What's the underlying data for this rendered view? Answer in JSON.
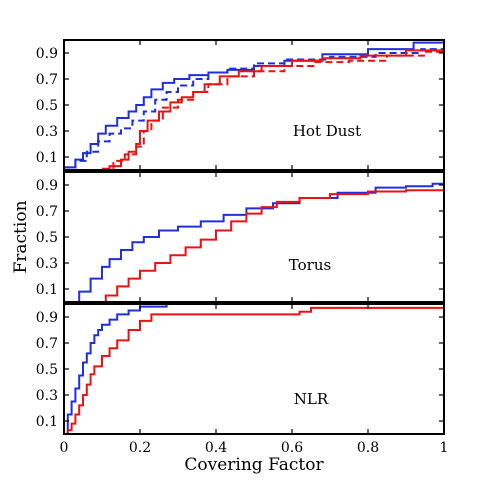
{
  "chart_data": {
    "type": "line",
    "xlabel": "Covering Factor",
    "ylabel": "Fraction",
    "xlim": [
      0,
      1
    ],
    "ylim": [
      0,
      1
    ],
    "x_ticks": [
      0,
      0.2,
      0.4,
      0.6,
      0.8,
      1
    ],
    "x_tick_labels": [
      "0",
      "0.2",
      "0.4",
      "0.6",
      "0.8",
      "1"
    ],
    "y_ticks": [
      0.1,
      0.3,
      0.5,
      0.7,
      0.9
    ],
    "y_tick_labels": [
      "0.1",
      "0.3",
      "0.5",
      "0.7",
      "0.9"
    ],
    "grid": false,
    "legend": "none",
    "colors": {
      "blue": "#1f2fe0",
      "red": "#ee1111"
    },
    "panels": [
      {
        "label": "Hot Dust",
        "series": [
          {
            "color": "blue",
            "dash": false,
            "x": [
              0,
              0.03,
              0.05,
              0.07,
              0.09,
              0.11,
              0.14,
              0.17,
              0.19,
              0.21,
              0.23,
              0.26,
              0.29,
              0.33,
              0.38,
              0.43,
              0.5,
              0.58,
              0.68,
              0.8,
              0.92,
              1.0
            ],
            "y": [
              0.02,
              0.08,
              0.13,
              0.2,
              0.28,
              0.34,
              0.4,
              0.45,
              0.5,
              0.56,
              0.62,
              0.67,
              0.7,
              0.73,
              0.75,
              0.77,
              0.8,
              0.84,
              0.89,
              0.93,
              0.98,
              0.99
            ]
          },
          {
            "color": "blue",
            "dash": true,
            "x": [
              0,
              0.03,
              0.06,
              0.09,
              0.12,
              0.15,
              0.18,
              0.21,
              0.24,
              0.27,
              0.3,
              0.34,
              0.38,
              0.43,
              0.5,
              0.58,
              0.7,
              0.82,
              0.94,
              1.0
            ],
            "y": [
              0.02,
              0.07,
              0.14,
              0.22,
              0.28,
              0.32,
              0.38,
              0.45,
              0.54,
              0.6,
              0.65,
              0.7,
              0.75,
              0.78,
              0.82,
              0.85,
              0.87,
              0.9,
              0.93,
              0.94
            ]
          },
          {
            "color": "red",
            "dash": false,
            "x": [
              0.09,
              0.12,
              0.15,
              0.17,
              0.19,
              0.2,
              0.22,
              0.25,
              0.28,
              0.31,
              0.34,
              0.37,
              0.41,
              0.46,
              0.52,
              0.6,
              0.68,
              0.78,
              0.9,
              1.0
            ],
            "y": [
              0.0,
              0.03,
              0.08,
              0.14,
              0.2,
              0.3,
              0.38,
              0.45,
              0.52,
              0.56,
              0.6,
              0.66,
              0.72,
              0.76,
              0.8,
              0.84,
              0.86,
              0.88,
              0.92,
              0.95
            ]
          },
          {
            "color": "red",
            "dash": true,
            "x": [
              0.1,
              0.13,
              0.16,
              0.19,
              0.21,
              0.23,
              0.26,
              0.3,
              0.34,
              0.38,
              0.43,
              0.5,
              0.58,
              0.66,
              0.75,
              0.85,
              0.95,
              1.0
            ],
            "y": [
              0.01,
              0.07,
              0.12,
              0.18,
              0.3,
              0.38,
              0.48,
              0.54,
              0.6,
              0.66,
              0.72,
              0.76,
              0.8,
              0.83,
              0.84,
              0.88,
              0.91,
              0.93
            ]
          }
        ]
      },
      {
        "label": "Torus",
        "series": [
          {
            "color": "blue",
            "dash": false,
            "x": [
              0,
              0.04,
              0.07,
              0.1,
              0.12,
              0.15,
              0.18,
              0.21,
              0.25,
              0.3,
              0.36,
              0.42,
              0.48,
              0.55,
              0.62,
              0.72,
              0.82,
              0.9,
              0.97,
              1.0
            ],
            "y": [
              0.0,
              0.08,
              0.18,
              0.27,
              0.33,
              0.4,
              0.46,
              0.5,
              0.55,
              0.58,
              0.62,
              0.67,
              0.72,
              0.76,
              0.8,
              0.84,
              0.88,
              0.89,
              0.91,
              0.91
            ]
          },
          {
            "color": "red",
            "dash": false,
            "x": [
              0.08,
              0.11,
              0.14,
              0.17,
              0.2,
              0.24,
              0.28,
              0.32,
              0.36,
              0.4,
              0.44,
              0.48,
              0.52,
              0.56,
              0.62,
              0.7,
              0.8,
              0.9,
              1.0
            ],
            "y": [
              0.0,
              0.05,
              0.12,
              0.18,
              0.24,
              0.3,
              0.36,
              0.42,
              0.48,
              0.55,
              0.62,
              0.68,
              0.73,
              0.77,
              0.8,
              0.83,
              0.85,
              0.86,
              0.87
            ]
          }
        ]
      },
      {
        "label": "NLR",
        "series": [
          {
            "color": "blue",
            "dash": false,
            "x": [
              0,
              0.01,
              0.02,
              0.03,
              0.04,
              0.05,
              0.06,
              0.07,
              0.08,
              0.09,
              0.1,
              0.12,
              0.14,
              0.17,
              0.2,
              0.27
            ],
            "y": [
              0.0,
              0.15,
              0.25,
              0.35,
              0.45,
              0.55,
              0.62,
              0.7,
              0.76,
              0.8,
              0.84,
              0.88,
              0.92,
              0.95,
              0.98,
              1.0
            ]
          },
          {
            "color": "red",
            "dash": false,
            "x": [
              0,
              0.01,
              0.02,
              0.03,
              0.04,
              0.05,
              0.06,
              0.07,
              0.08,
              0.1,
              0.12,
              0.14,
              0.17,
              0.2,
              0.23,
              0.62,
              0.65,
              1.0
            ],
            "y": [
              0.0,
              0.03,
              0.08,
              0.15,
              0.22,
              0.3,
              0.38,
              0.46,
              0.52,
              0.6,
              0.66,
              0.72,
              0.8,
              0.87,
              0.92,
              0.94,
              0.97,
              0.97
            ]
          }
        ]
      }
    ]
  }
}
